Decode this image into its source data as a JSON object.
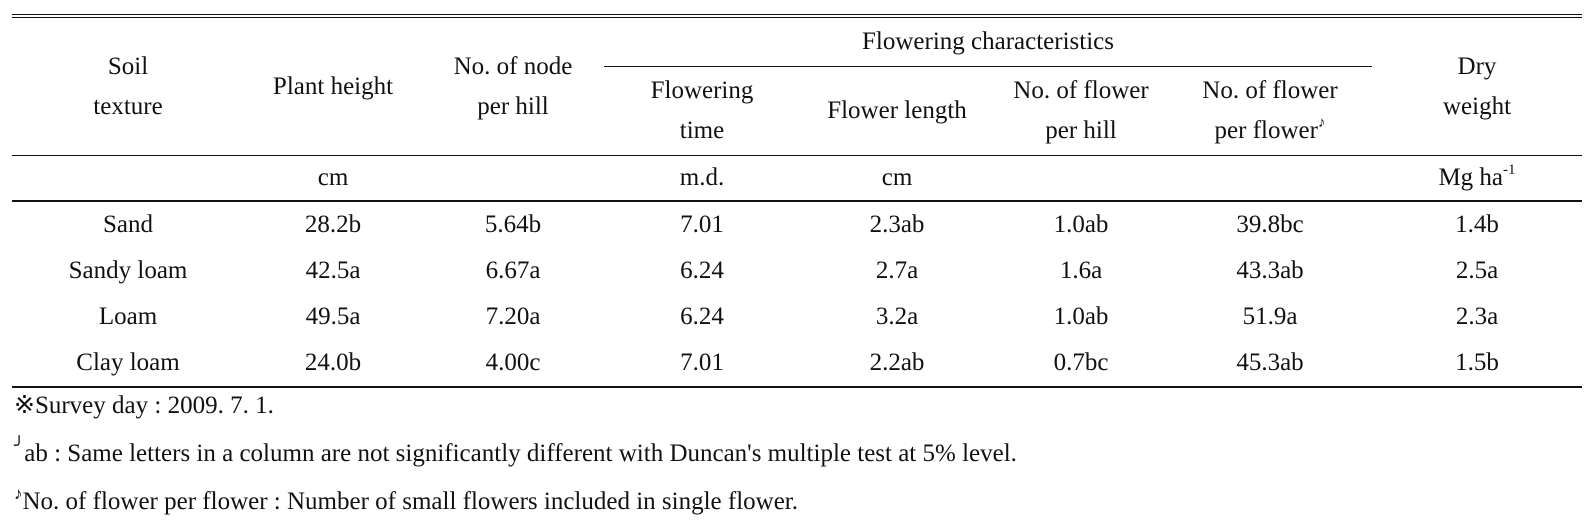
{
  "table": {
    "headers": {
      "soil_texture": [
        "Soil",
        "texture"
      ],
      "plant_height": "Plant height",
      "node_per_hill": [
        "No. of node",
        "per hill"
      ],
      "flowering_group": "Flowering  characteristics",
      "flowering_time": [
        "Flowering",
        "time"
      ],
      "flower_length": "Flower length",
      "flower_per_hill": [
        "No. of flower",
        "per hill"
      ],
      "flower_per_flower": [
        "No. of flower",
        "per flower"
      ],
      "flower_per_flower_mark": "♪",
      "dry_weight": [
        "Dry",
        "weight"
      ]
    },
    "units": {
      "plant_height": "cm",
      "flowering_time": "m.d.",
      "flower_length": "cm",
      "dry_weight_base": "Mg ha",
      "dry_weight_exp": "-1"
    },
    "rows": [
      {
        "soil": "Sand",
        "height": "28.2b",
        "nodes": "5.64b",
        "time": "7.01",
        "length": "2.3ab",
        "fph": "1.0ab",
        "fpf": "39.8bc",
        "dry": "1.4b"
      },
      {
        "soil": "Sandy  loam",
        "height": "42.5a",
        "nodes": "6.67a",
        "time": "6.24",
        "length": "2.7a",
        "fph": "1.6a",
        "fpf": "43.3ab",
        "dry": "2.5a"
      },
      {
        "soil": "Loam",
        "height": "49.5a",
        "nodes": "7.20a",
        "time": "6.24",
        "length": "3.2a",
        "fph": "1.0ab",
        "fpf": "51.9a",
        "dry": "2.3a"
      },
      {
        "soil": "Clay  loam",
        "height": "24.0b",
        "nodes": "4.00c",
        "time": "7.01",
        "length": "2.2ab",
        "fph": "0.7bc",
        "fpf": "45.3ab",
        "dry": "1.5b"
      }
    ]
  },
  "notes": {
    "survey": "※Survey  day  :  2009.  7.  1.",
    "duncan_mark": "╯",
    "duncan": "ab  :  Same  letters  in  a  column  are  not  significantly  different  with  Duncan's  multiple  test  at  5%  level.",
    "flower_mark": "♪",
    "flower_def": "No.  of  flower  per  flower  :  Number  of  small  flowers  included  in  single  flower."
  }
}
